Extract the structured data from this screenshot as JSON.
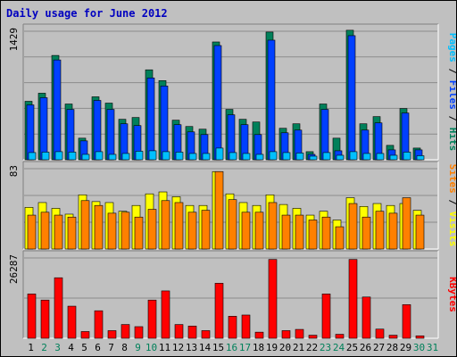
{
  "title": "Daily usage for June 2012",
  "colors": {
    "background": "#c0c0c0",
    "plot": "#c0c0c0",
    "grid": "#8c8c8c",
    "title": "#0000c0",
    "hits": "#00805a",
    "files": "#0040ff",
    "pages": "#00c0ff",
    "visits": "#ffff00",
    "sites": "#ff8000",
    "kbytes": "#ff0000",
    "weekday": "#000000",
    "weekend": "#00805a"
  },
  "chart_data": [
    {
      "type": "bar",
      "panel": "top",
      "ymax_label": "1429",
      "ymax": 1429,
      "grid_lines": 5,
      "legend": {
        "pages": "Pages",
        "files": "Files",
        "hits": "Hits",
        "sep": " / "
      },
      "categories": [
        "1",
        "2",
        "3",
        "4",
        "5",
        "6",
        "7",
        "8",
        "9",
        "10",
        "11",
        "12",
        "13",
        "14",
        "15",
        "16",
        "17",
        "18",
        "19",
        "20",
        "21",
        "22",
        "23",
        "24",
        "25",
        "26",
        "27",
        "28",
        "29",
        "30",
        "31"
      ],
      "weekend_days": [
        "2",
        "3",
        "9",
        "10",
        "16",
        "17",
        "23",
        "24",
        "30",
        "31"
      ],
      "series": [
        {
          "name": "Hits",
          "key": "hits",
          "values": [
            650,
            740,
            1160,
            620,
            240,
            700,
            630,
            450,
            470,
            1000,
            880,
            440,
            370,
            340,
            1310,
            560,
            450,
            420,
            1420,
            350,
            400,
            90,
            620,
            240,
            1440,
            400,
            480,
            160,
            570,
            130,
            0
          ]
        },
        {
          "name": "Files",
          "key": "files",
          "values": [
            610,
            690,
            1110,
            560,
            210,
            660,
            560,
            400,
            380,
            910,
            820,
            390,
            310,
            280,
            1270,
            500,
            390,
            280,
            1330,
            300,
            330,
            60,
            560,
            100,
            1380,
            330,
            410,
            110,
            520,
            110,
            0
          ]
        },
        {
          "name": "Pages",
          "key": "pages",
          "values": [
            80,
            85,
            90,
            85,
            60,
            90,
            60,
            70,
            95,
            100,
            90,
            85,
            70,
            70,
            130,
            80,
            70,
            60,
            90,
            80,
            75,
            40,
            80,
            50,
            90,
            70,
            70,
            50,
            85,
            45,
            0
          ]
        }
      ]
    },
    {
      "type": "bar",
      "panel": "middle",
      "ymax_label": "83",
      "ymax": 83,
      "grid_lines": 3,
      "legend": {
        "sites": "Sites",
        "visits": "Visits",
        "sep": " / "
      },
      "categories": [
        "1",
        "2",
        "3",
        "4",
        "5",
        "6",
        "7",
        "8",
        "9",
        "10",
        "11",
        "12",
        "13",
        "14",
        "15",
        "16",
        "17",
        "18",
        "19",
        "20",
        "21",
        "22",
        "23",
        "24",
        "25",
        "26",
        "27",
        "28",
        "29",
        "30",
        "31"
      ],
      "series": [
        {
          "name": "Visits",
          "key": "visits",
          "values": [
            43,
            48,
            42,
            36,
            56,
            49,
            48,
            39,
            45,
            57,
            59,
            54,
            45,
            45,
            80,
            57,
            48,
            45,
            56,
            46,
            42,
            35,
            39,
            30,
            53,
            44,
            47,
            45,
            47,
            40,
            0
          ]
        },
        {
          "name": "Sites",
          "key": "sites",
          "values": [
            35,
            38,
            35,
            33,
            50,
            45,
            37,
            38,
            33,
            41,
            50,
            48,
            38,
            40,
            80,
            51,
            38,
            38,
            48,
            35,
            35,
            30,
            33,
            23,
            47,
            33,
            39,
            37,
            53,
            35,
            0
          ]
        }
      ]
    },
    {
      "type": "bar",
      "panel": "bottom",
      "ymax_label": "26287",
      "ymax": 26287,
      "grid_lines": 2,
      "legend": {
        "kbytes": "KBytes"
      },
      "categories": [
        "1",
        "2",
        "3",
        "4",
        "5",
        "6",
        "7",
        "8",
        "9",
        "10",
        "11",
        "12",
        "13",
        "14",
        "15",
        "16",
        "17",
        "18",
        "19",
        "20",
        "21",
        "22",
        "23",
        "24",
        "25",
        "26",
        "27",
        "28",
        "29",
        "30",
        "31"
      ],
      "series": [
        {
          "name": "KBytes",
          "key": "kbytes",
          "values": [
            14500,
            12500,
            19800,
            10500,
            2200,
            9000,
            2500,
            4500,
            3800,
            12500,
            15500,
            4500,
            4000,
            2500,
            18000,
            7200,
            7600,
            2000,
            25800,
            2500,
            2900,
            1000,
            14500,
            1300,
            25800,
            13500,
            3000,
            1000,
            11000,
            800,
            0
          ]
        }
      ]
    }
  ]
}
